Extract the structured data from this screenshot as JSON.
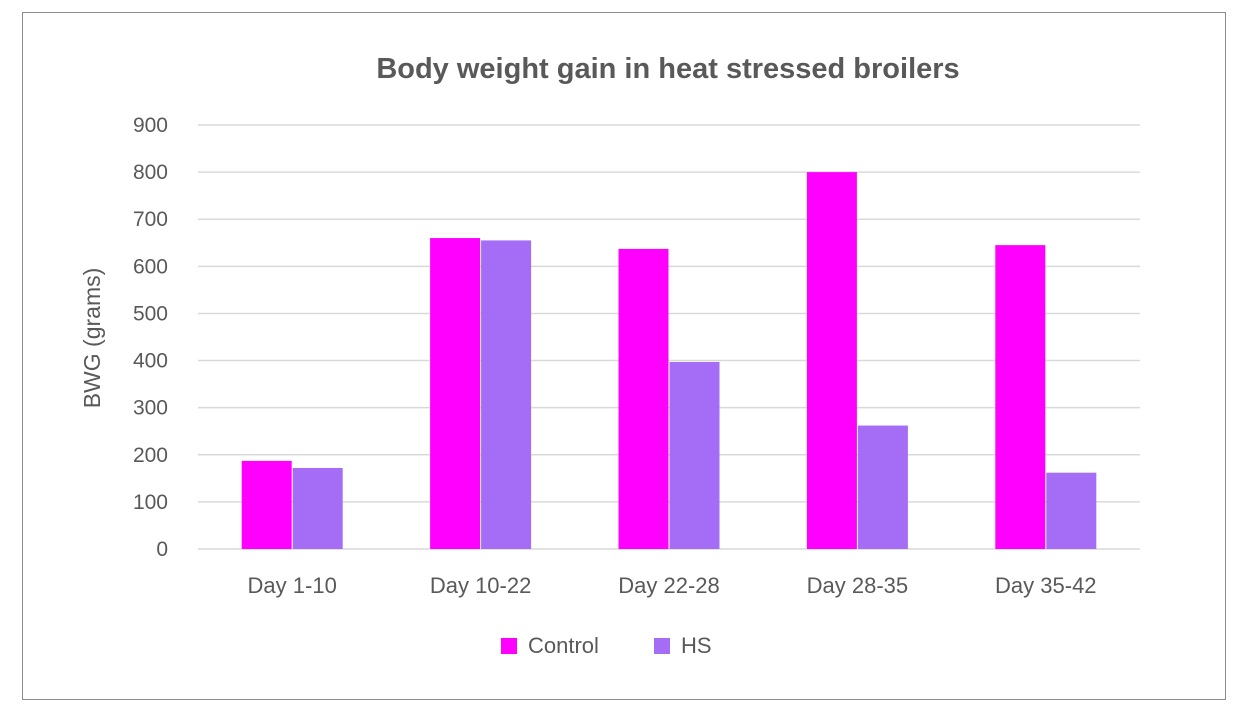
{
  "chart_data": {
    "type": "bar",
    "title": "Body weight gain in heat stressed broilers",
    "xlabel": "",
    "ylabel": "BWG (grams)",
    "ylim": [
      0,
      900
    ],
    "yticks": [
      0,
      100,
      200,
      300,
      400,
      500,
      600,
      700,
      800,
      900
    ],
    "grid": true,
    "legend_position": "bottom",
    "categories": [
      "Day 1-10",
      "Day 10-22",
      "Day 22-28",
      "Day 28-35",
      "Day 35-42"
    ],
    "series": [
      {
        "name": "Control",
        "color": "#ff00ff",
        "values": [
          187,
          660,
          637,
          800,
          645
        ]
      },
      {
        "name": "HS",
        "color": "#a56cf5",
        "values": [
          172,
          655,
          397,
          262,
          162
        ]
      }
    ],
    "gridline_color": "#d9d9d9",
    "text_color": "#595959"
  }
}
